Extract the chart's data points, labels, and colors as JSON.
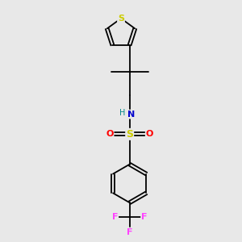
{
  "bg_color": "#e8e8e8",
  "bond_color": "#000000",
  "S_thiophene_color": "#cccc00",
  "S_sulfonyl_color": "#cccc00",
  "N_color": "#0000cc",
  "H_color": "#008888",
  "O_color": "#ff0000",
  "F_color": "#ff44ff",
  "lw": 1.3,
  "xlim": [
    0,
    6
  ],
  "ylim": [
    0,
    9
  ],
  "figsize": [
    3.0,
    3.0
  ],
  "dpi": 100
}
